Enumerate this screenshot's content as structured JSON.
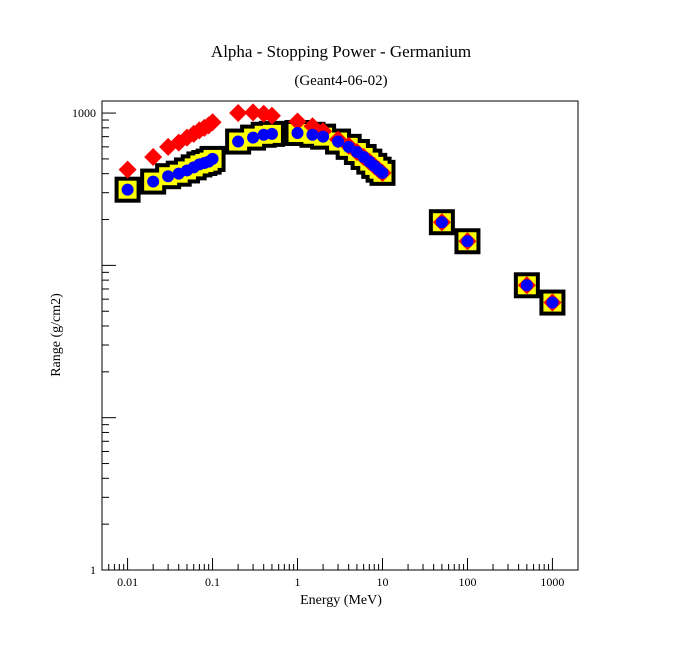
{
  "chart_data": {
    "type": "scatter",
    "title": "Alpha - Stopping Power - Germanium",
    "subtitle": "(Geant4-06-02)",
    "xlabel": "Energy (MeV)",
    "ylabel": "Range (g/cm2)",
    "x_scale": "log",
    "y_scale": "log",
    "xlim": [
      0.005,
      2000
    ],
    "ylim": [
      1,
      1200
    ],
    "x_ticks": [
      {
        "value": 0.01,
        "label": "0.01"
      },
      {
        "value": 0.1,
        "label": "0.1"
      },
      {
        "value": 1,
        "label": "1"
      },
      {
        "value": 10,
        "label": "10"
      },
      {
        "value": 100,
        "label": "100"
      },
      {
        "value": 1000,
        "label": "1000"
      }
    ],
    "y_ticks": [
      {
        "value": 1,
        "label": "1"
      },
      {
        "value": 1000,
        "label": "1000"
      }
    ],
    "grid": false,
    "legend": "none",
    "series": [
      {
        "marker": "square-band",
        "color": "#ffff00",
        "edge_color": "#000000",
        "points": [
          {
            "x": 0.01,
            "y": 314
          },
          {
            "x": 0.02,
            "y": 355
          },
          {
            "x": 0.03,
            "y": 385
          },
          {
            "x": 0.04,
            "y": 400
          },
          {
            "x": 0.05,
            "y": 420
          },
          {
            "x": 0.06,
            "y": 440
          },
          {
            "x": 0.07,
            "y": 460
          },
          {
            "x": 0.08,
            "y": 470
          },
          {
            "x": 0.09,
            "y": 480
          },
          {
            "x": 0.1,
            "y": 500
          },
          {
            "x": 0.2,
            "y": 650
          },
          {
            "x": 0.3,
            "y": 690
          },
          {
            "x": 0.4,
            "y": 720
          },
          {
            "x": 0.5,
            "y": 730
          },
          {
            "x": 1,
            "y": 740
          },
          {
            "x": 1.5,
            "y": 720
          },
          {
            "x": 2,
            "y": 700
          },
          {
            "x": 3,
            "y": 650
          },
          {
            "x": 4,
            "y": 600
          },
          {
            "x": 5,
            "y": 555
          },
          {
            "x": 6,
            "y": 515
          },
          {
            "x": 7,
            "y": 480
          },
          {
            "x": 8,
            "y": 450
          },
          {
            "x": 9,
            "y": 425
          },
          {
            "x": 10,
            "y": 405
          },
          {
            "x": 50,
            "y": 192
          },
          {
            "x": 100,
            "y": 144
          },
          {
            "x": 500,
            "y": 74
          },
          {
            "x": 1000,
            "y": 57
          }
        ]
      },
      {
        "marker": "diamond",
        "color": "#ff0000",
        "points": [
          {
            "x": 0.01,
            "y": 425
          },
          {
            "x": 0.02,
            "y": 515
          },
          {
            "x": 0.03,
            "y": 600
          },
          {
            "x": 0.04,
            "y": 640
          },
          {
            "x": 0.05,
            "y": 690
          },
          {
            "x": 0.06,
            "y": 730
          },
          {
            "x": 0.07,
            "y": 770
          },
          {
            "x": 0.08,
            "y": 800
          },
          {
            "x": 0.09,
            "y": 830
          },
          {
            "x": 0.1,
            "y": 870
          },
          {
            "x": 0.2,
            "y": 1000
          },
          {
            "x": 0.3,
            "y": 1010
          },
          {
            "x": 0.4,
            "y": 990
          },
          {
            "x": 0.5,
            "y": 960
          },
          {
            "x": 1,
            "y": 880
          },
          {
            "x": 1.5,
            "y": 820
          },
          {
            "x": 2,
            "y": 760
          },
          {
            "x": 3,
            "y": 670
          },
          {
            "x": 4,
            "y": 610
          },
          {
            "x": 5,
            "y": 555
          },
          {
            "x": 6,
            "y": 515
          },
          {
            "x": 7,
            "y": 480
          },
          {
            "x": 8,
            "y": 450
          },
          {
            "x": 9,
            "y": 425
          },
          {
            "x": 10,
            "y": 405
          },
          {
            "x": 50,
            "y": 192
          },
          {
            "x": 100,
            "y": 144
          },
          {
            "x": 500,
            "y": 74
          },
          {
            "x": 1000,
            "y": 57
          }
        ]
      },
      {
        "marker": "circle",
        "color": "#0000ff",
        "points": [
          {
            "x": 0.01,
            "y": 314
          },
          {
            "x": 0.02,
            "y": 355
          },
          {
            "x": 0.03,
            "y": 385
          },
          {
            "x": 0.04,
            "y": 400
          },
          {
            "x": 0.05,
            "y": 420
          },
          {
            "x": 0.06,
            "y": 440
          },
          {
            "x": 0.07,
            "y": 460
          },
          {
            "x": 0.08,
            "y": 470
          },
          {
            "x": 0.09,
            "y": 480
          },
          {
            "x": 0.1,
            "y": 500
          },
          {
            "x": 0.2,
            "y": 650
          },
          {
            "x": 0.3,
            "y": 690
          },
          {
            "x": 0.4,
            "y": 720
          },
          {
            "x": 0.5,
            "y": 730
          },
          {
            "x": 1,
            "y": 740
          },
          {
            "x": 1.5,
            "y": 720
          },
          {
            "x": 2,
            "y": 700
          },
          {
            "x": 3,
            "y": 650
          },
          {
            "x": 4,
            "y": 600
          },
          {
            "x": 5,
            "y": 555
          },
          {
            "x": 6,
            "y": 515
          },
          {
            "x": 7,
            "y": 480
          },
          {
            "x": 8,
            "y": 450
          },
          {
            "x": 9,
            "y": 425
          },
          {
            "x": 10,
            "y": 405
          },
          {
            "x": 50,
            "y": 192
          },
          {
            "x": 100,
            "y": 144
          },
          {
            "x": 500,
            "y": 74
          },
          {
            "x": 1000,
            "y": 57
          }
        ]
      }
    ]
  }
}
